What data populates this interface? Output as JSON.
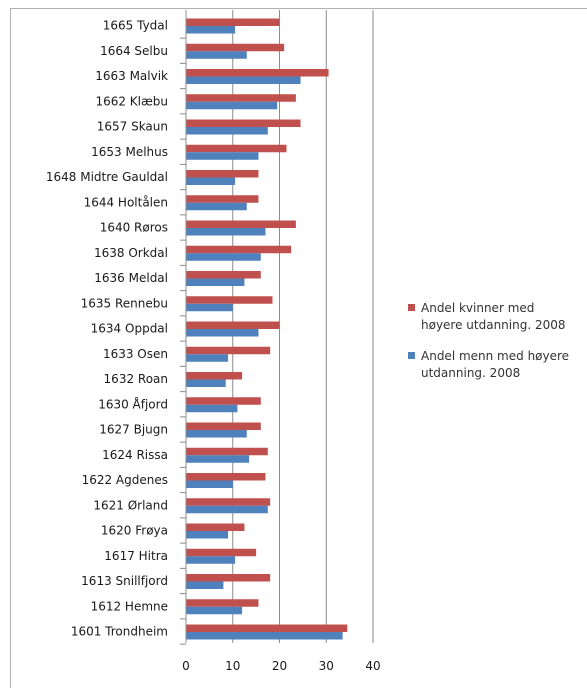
{
  "chart_data": {
    "type": "bar",
    "orientation": "horizontal",
    "categories": [
      "1665 Tydal",
      "1664 Selbu",
      "1663 Malvik",
      "1662 Klæbu",
      "1657 Skaun",
      "1653 Melhus",
      "1648 Midtre Gauldal",
      "1644 Holtålen",
      "1640 Røros",
      "1638 Orkdal",
      "1636 Meldal",
      "1635 Rennebu",
      "1634 Oppdal",
      "1633 Osen",
      "1632 Roan",
      "1630 Åfjord",
      "1627 Bjugn",
      "1624 Rissa",
      "1622 Agdenes",
      "1621 Ørland",
      "1620 Frøya",
      "1617 Hitra",
      "1613 Snillfjord",
      "1612 Hemne",
      "1601 Trondheim"
    ],
    "series": [
      {
        "name": "Andel kvinner med høyere utdanning. 2008",
        "color": "#c0504d",
        "values": [
          20,
          21,
          30.5,
          23.5,
          24.5,
          21.5,
          15.5,
          15.5,
          23.5,
          22.5,
          16,
          18.5,
          20,
          18,
          12,
          16,
          16,
          17.5,
          17,
          18,
          12.5,
          15,
          18,
          15.5,
          34.5
        ]
      },
      {
        "name": "Andel menn med høyere utdanning. 2008",
        "color": "#4f81bd",
        "values": [
          10.5,
          13,
          24.5,
          19.5,
          17.5,
          15.5,
          10.5,
          13,
          17,
          16,
          12.5,
          10,
          15.5,
          9,
          8.5,
          11,
          13,
          13.5,
          10,
          17.5,
          9,
          10.5,
          8,
          12,
          33.5
        ]
      }
    ],
    "xticks": [
      "0",
      "10",
      "20",
      "30",
      "40"
    ],
    "xlim": [
      0,
      40
    ],
    "grid": true,
    "legend_position": "right",
    "title": "",
    "xlabel": "",
    "ylabel": ""
  }
}
